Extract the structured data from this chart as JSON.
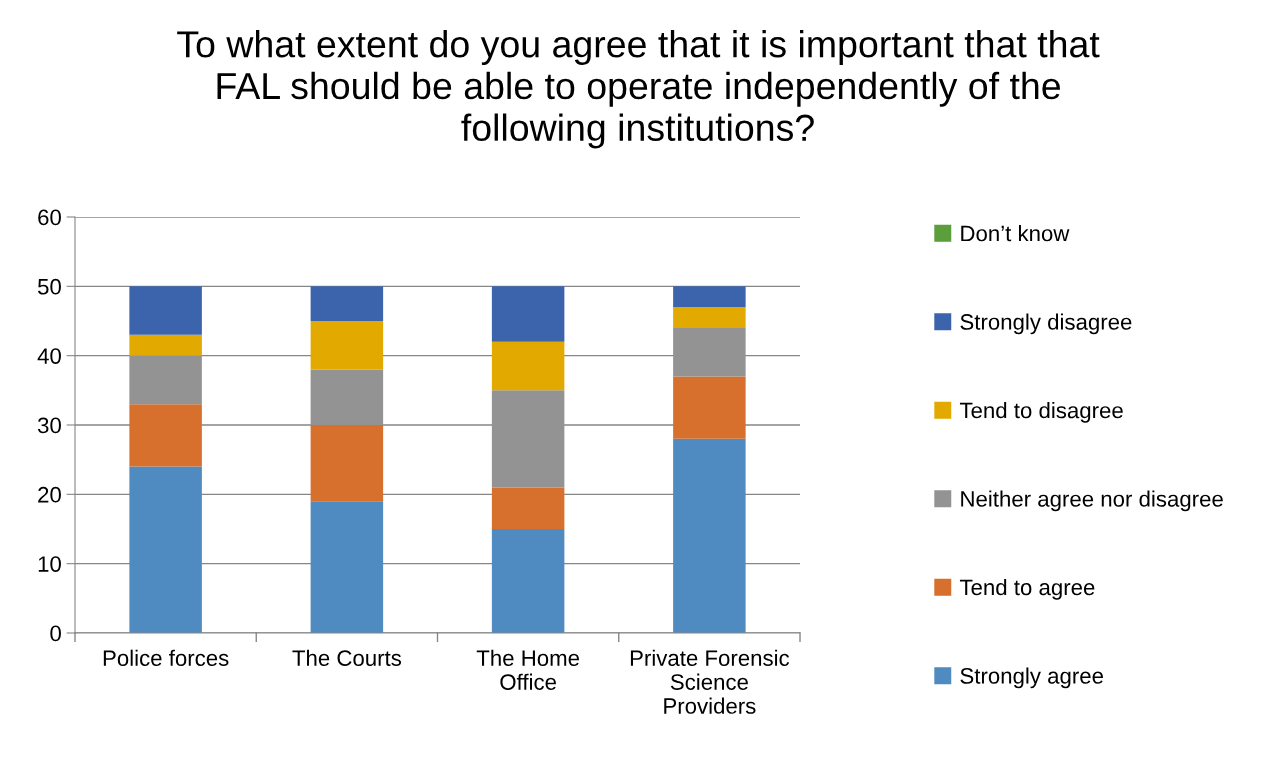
{
  "chart_data": {
    "type": "bar",
    "stacked": true,
    "title": "To what extent do you agree that it is important that that\nFAL should be able to operate independently of the\nfollowing institutions?",
    "categories": [
      "Police forces",
      "The Courts",
      "The Home\nOffice",
      "Private Forensic\nScience\nProviders"
    ],
    "series": [
      {
        "name": "Strongly agree",
        "color": "#4f8bc0",
        "values": [
          24,
          19,
          15,
          28
        ]
      },
      {
        "name": "Tend to agree",
        "color": "#d6702c",
        "values": [
          9,
          11,
          6,
          9
        ]
      },
      {
        "name": "Neither agree nor disagree",
        "color": "#939393",
        "values": [
          7,
          8,
          14,
          7
        ]
      },
      {
        "name": "Tend to disagree",
        "color": "#e2aa00",
        "values": [
          3,
          7,
          7,
          3
        ]
      },
      {
        "name": "Strongly disagree",
        "color": "#3b64ad",
        "values": [
          7,
          5,
          8,
          3
        ]
      },
      {
        "name": "Don’t know",
        "color": "#5b9e3c",
        "values": [
          0,
          0,
          0,
          0
        ]
      }
    ],
    "ylim": [
      0,
      60
    ],
    "yticks": [
      0,
      10,
      20,
      30,
      40,
      50,
      60
    ],
    "grid": "y",
    "legend": "right"
  }
}
